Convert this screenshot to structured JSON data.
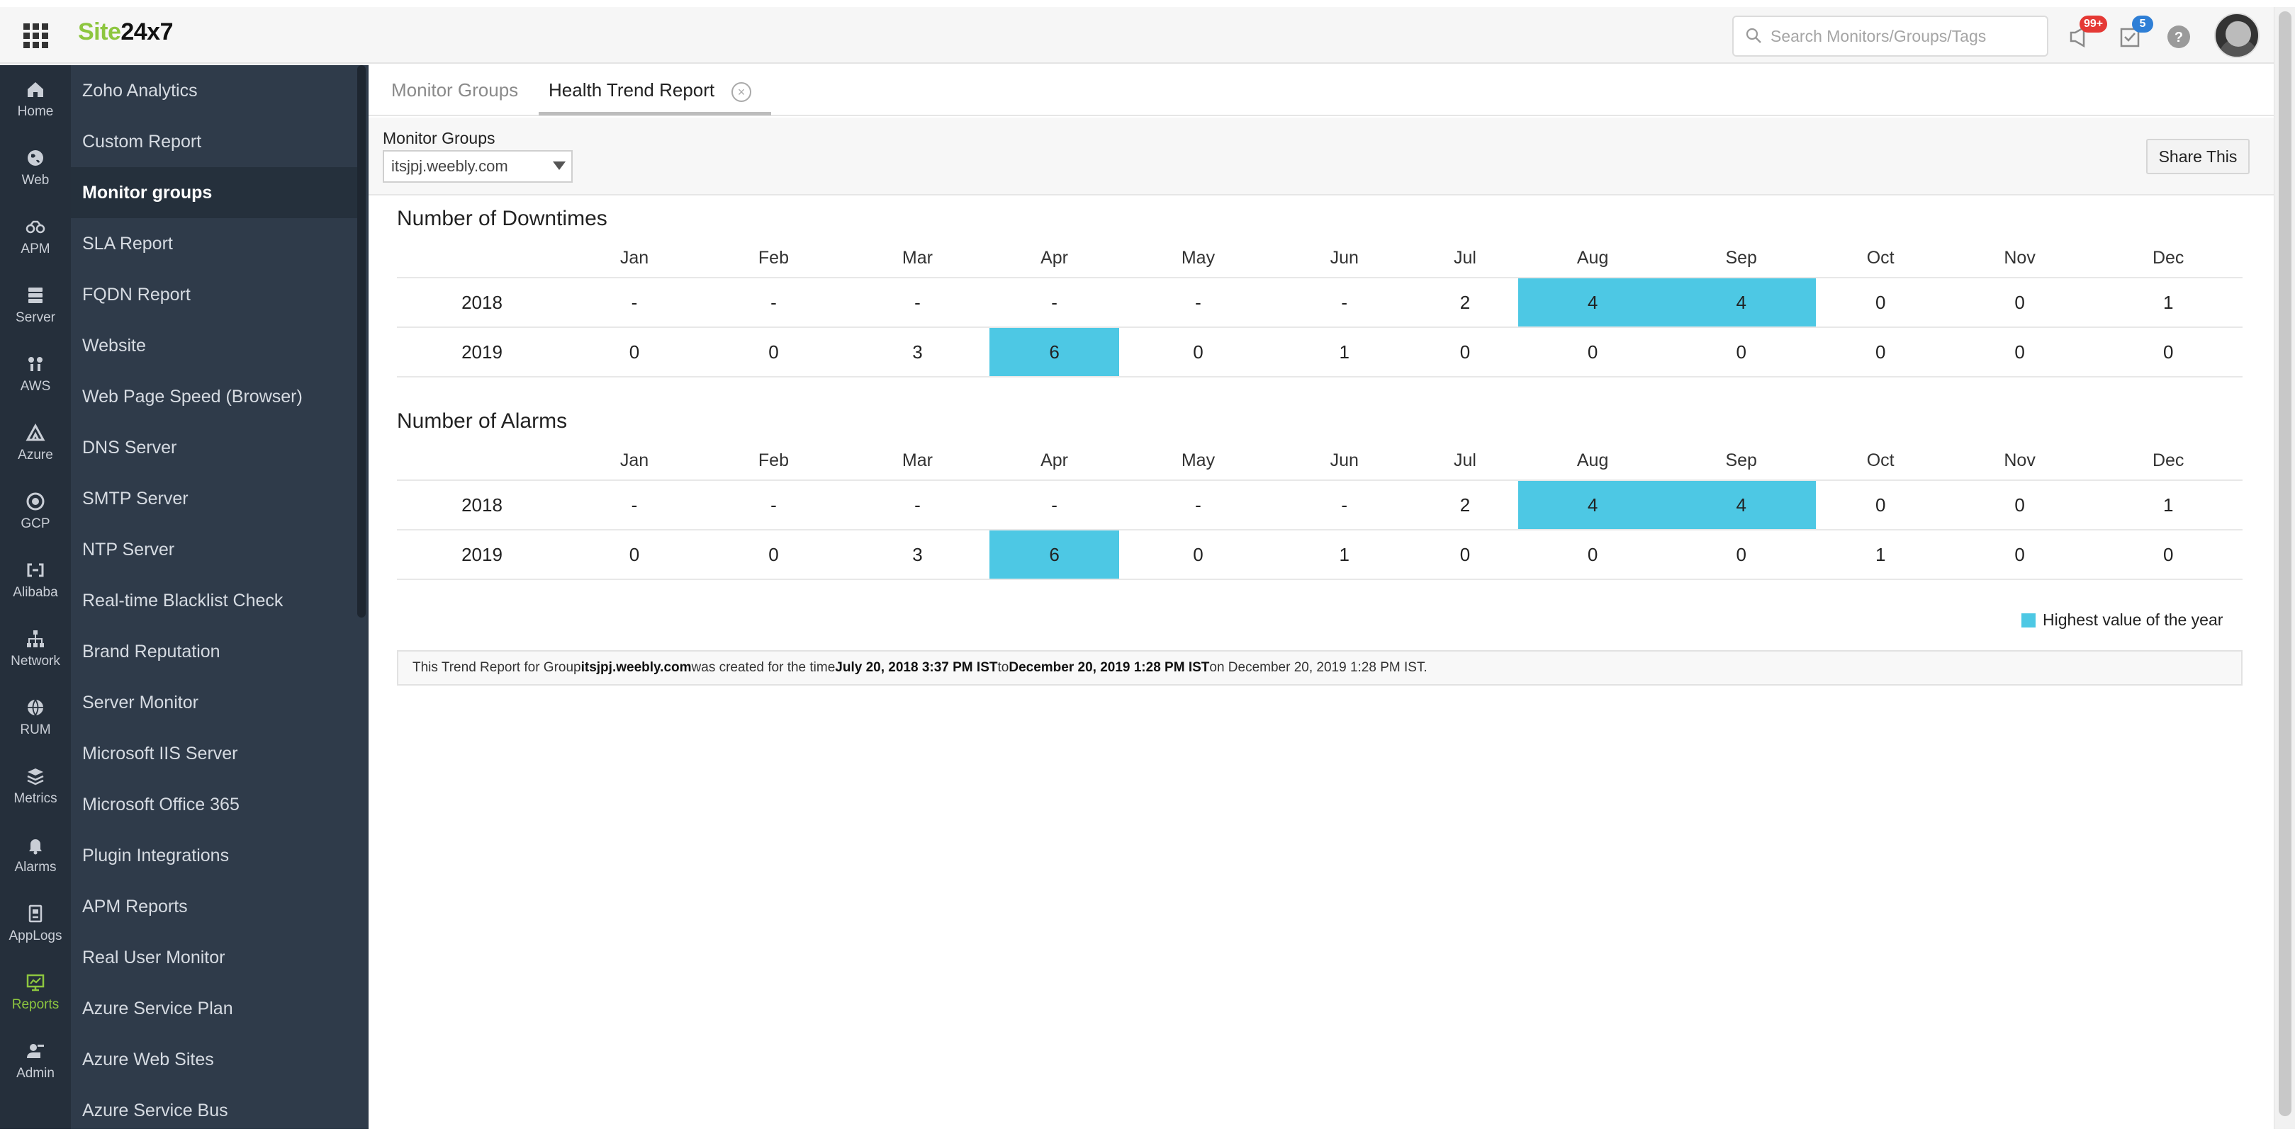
{
  "header": {
    "logo_site": "Site",
    "logo_num": "24x7",
    "search_placeholder": "Search Monitors/Groups/Tags",
    "notifications_badge": "99+",
    "tasks_badge": "5"
  },
  "rail": {
    "items": [
      {
        "label": "Home",
        "icon": "home-icon"
      },
      {
        "label": "Web",
        "icon": "globe-icon"
      },
      {
        "label": "APM",
        "icon": "apm-icon"
      },
      {
        "label": "Server",
        "icon": "server-icon"
      },
      {
        "label": "AWS",
        "icon": "aws-icon"
      },
      {
        "label": "Azure",
        "icon": "azure-icon"
      },
      {
        "label": "GCP",
        "icon": "gcp-icon"
      },
      {
        "label": "Alibaba",
        "icon": "alibaba-icon"
      },
      {
        "label": "Network",
        "icon": "network-icon"
      },
      {
        "label": "RUM",
        "icon": "rum-icon"
      },
      {
        "label": "Metrics",
        "icon": "metrics-icon"
      },
      {
        "label": "Alarms",
        "icon": "bell-icon"
      },
      {
        "label": "AppLogs",
        "icon": "applogs-icon"
      },
      {
        "label": "Reports",
        "icon": "reports-icon"
      },
      {
        "label": "Admin",
        "icon": "admin-icon"
      }
    ]
  },
  "subnav": {
    "items": [
      "Zoho Analytics",
      "Custom Report",
      "Monitor groups",
      "SLA Report",
      "FQDN Report",
      "Website",
      "Web Page Speed (Browser)",
      "DNS Server",
      "SMTP Server",
      "NTP Server",
      "Real-time Blacklist Check",
      "Brand Reputation",
      "Server Monitor",
      "Microsoft IIS Server",
      "Microsoft Office 365",
      "Plugin Integrations",
      "APM Reports",
      "Real User Monitor",
      "Azure Service Plan",
      "Azure Web Sites",
      "Azure Service Bus"
    ],
    "active_index": 2
  },
  "tabs": {
    "monitor_groups": "Monitor Groups",
    "health_trend": "Health Trend Report",
    "close_glyph": "×"
  },
  "filter": {
    "label": "Monitor Groups",
    "selected": "itsjpj.weebly.com",
    "share_label": "Share This"
  },
  "months": [
    "Jan",
    "Feb",
    "Mar",
    "Apr",
    "May",
    "Jun",
    "Jul",
    "Aug",
    "Sep",
    "Oct",
    "Nov",
    "Dec"
  ],
  "downtimes": {
    "title": "Number of Downtimes",
    "rows": [
      {
        "year": "2018",
        "values": [
          "-",
          "-",
          "-",
          "-",
          "-",
          "-",
          "2",
          "4",
          "4",
          "0",
          "0",
          "1"
        ],
        "highlight": [
          7,
          8
        ]
      },
      {
        "year": "2019",
        "values": [
          "0",
          "0",
          "3",
          "6",
          "0",
          "1",
          "0",
          "0",
          "0",
          "0",
          "0",
          "0"
        ],
        "highlight": [
          3
        ]
      }
    ]
  },
  "alarms": {
    "title": "Number of Alarms",
    "rows": [
      {
        "year": "2018",
        "values": [
          "-",
          "-",
          "-",
          "-",
          "-",
          "-",
          "2",
          "4",
          "4",
          "0",
          "0",
          "1"
        ],
        "highlight": [
          7,
          8
        ]
      },
      {
        "year": "2019",
        "values": [
          "0",
          "0",
          "3",
          "6",
          "0",
          "1",
          "0",
          "0",
          "0",
          "1",
          "0",
          "0"
        ],
        "highlight": [
          3
        ]
      }
    ]
  },
  "legend": {
    "label": "Highest value of the year",
    "color": "#4dc8e4"
  },
  "info": {
    "p1": "This Trend Report for Group ",
    "group": "itsjpj.weebly.com",
    "p2": " was created for the time ",
    "from": "July 20, 2018 3:37 PM IST",
    "p3": " to ",
    "to": "December 20, 2019 1:28 PM IST",
    "p4": " on December 20, 2019 1:28 PM IST."
  }
}
